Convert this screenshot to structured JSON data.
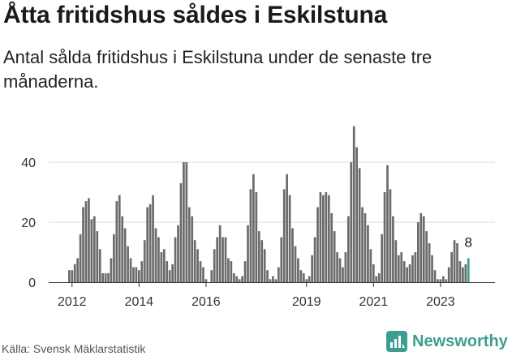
{
  "header": {
    "title": "Åtta fritidshus såldes i Eskilstuna",
    "subtitle": "Antal sålda fritidshus i Eskilstuna under de senaste tre månaderna."
  },
  "footer": {
    "source": "Källa: Svensk Mäklarstatistik",
    "brand": "Newsworthy"
  },
  "colors": {
    "bar": "#6b6b6b",
    "highlight": "#3d9f91",
    "gridline": "#d9d9d9",
    "axis": "#333333",
    "brand": "#3d9f91"
  },
  "chart_data": {
    "type": "bar",
    "title": "Åtta fritidshus såldes i Eskilstuna",
    "subtitle": "Antal sålda fritidshus i Eskilstuna under de senaste tre månaderna.",
    "x_start": "2011-12",
    "x_frequency": "monthly",
    "xticks": [
      "2012",
      "2014",
      "2016",
      "2019",
      "2021",
      "2023"
    ],
    "yticks": [
      0,
      20,
      40
    ],
    "ylim": [
      0,
      55
    ],
    "grid": true,
    "annotation": {
      "label": "8",
      "value": 8,
      "target": "last"
    },
    "values": [
      4,
      4,
      6,
      8,
      16,
      25,
      27,
      28,
      21,
      22,
      17,
      11,
      3,
      3,
      3,
      8,
      16,
      27,
      29,
      22,
      18,
      12,
      8,
      5,
      5,
      4,
      7,
      14,
      25,
      26,
      29,
      18,
      15,
      10,
      11,
      7,
      4,
      6,
      15,
      19,
      33,
      40,
      40,
      25,
      22,
      14,
      11,
      7,
      5,
      1,
      0,
      4,
      11,
      15,
      19,
      15,
      15,
      8,
      7,
      3,
      2,
      1,
      2,
      7,
      19,
      31,
      36,
      30,
      17,
      14,
      11,
      4,
      1,
      2,
      1,
      5,
      15,
      31,
      36,
      29,
      18,
      12,
      8,
      4,
      3,
      1,
      2,
      9,
      15,
      25,
      30,
      29,
      30,
      29,
      23,
      17,
      10,
      8,
      5,
      10,
      22,
      40,
      52,
      45,
      38,
      25,
      23,
      19,
      11,
      6,
      2,
      3,
      16,
      30,
      39,
      31,
      22,
      14,
      9,
      10,
      7,
      5,
      6,
      9,
      10,
      20,
      23,
      22,
      17,
      13,
      9,
      4,
      1,
      1,
      2,
      1,
      5,
      10,
      14,
      13,
      7,
      5,
      6,
      8
    ]
  }
}
